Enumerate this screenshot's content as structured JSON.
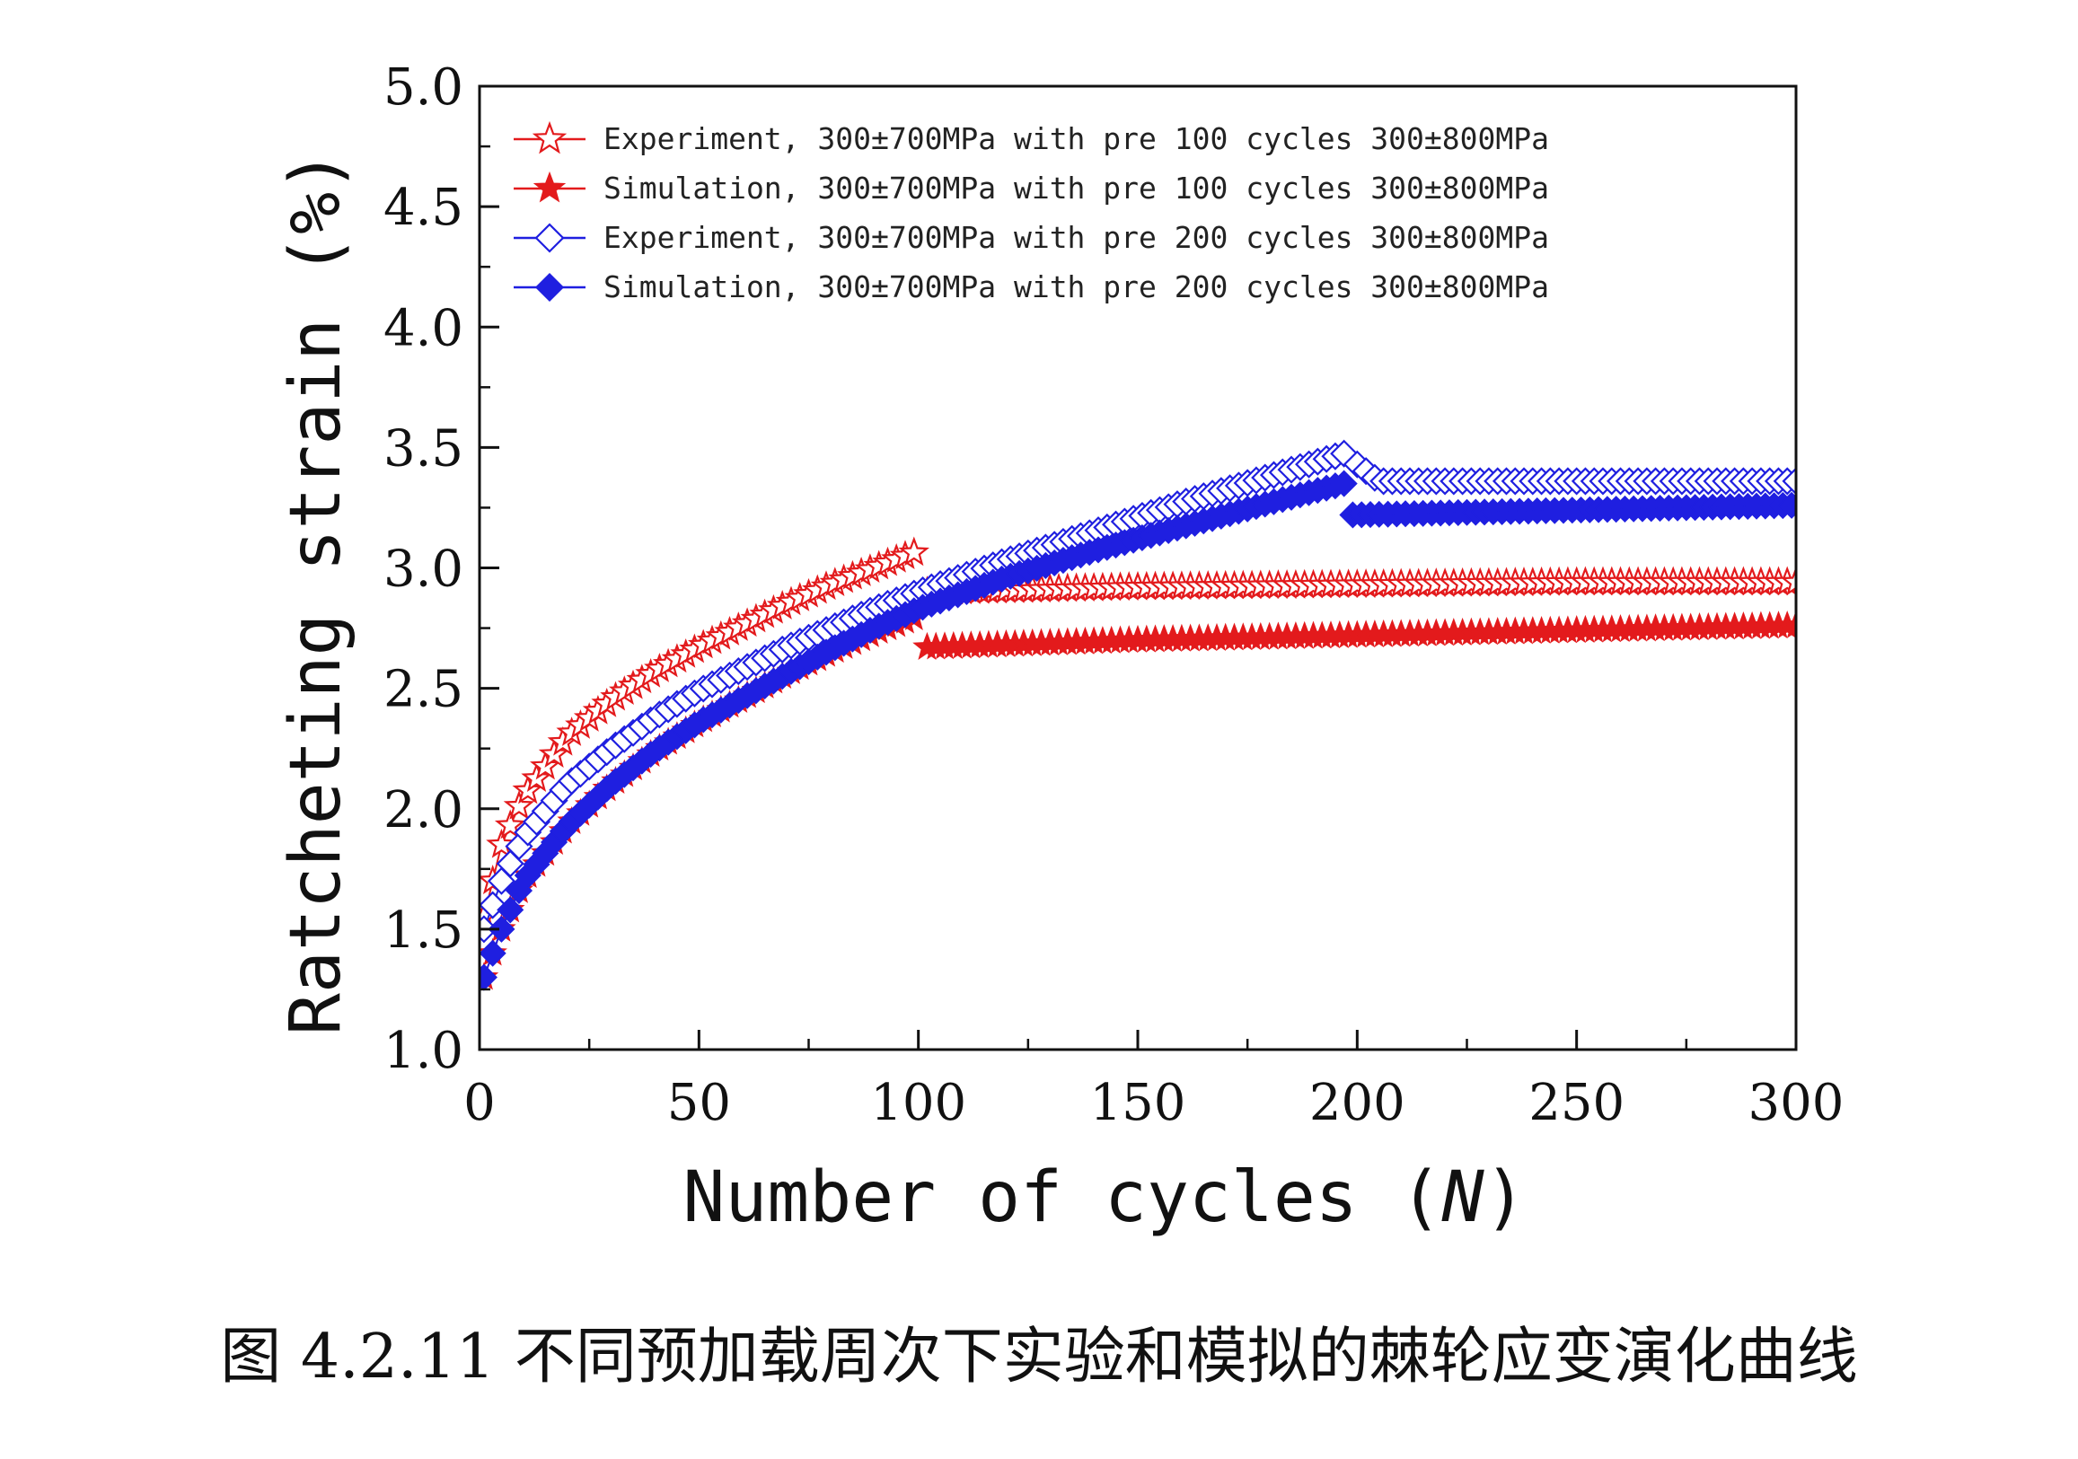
{
  "chart_data": {
    "type": "scatter",
    "title": "",
    "xlabel": "Number of cycles (",
    "xlabel_var": "N",
    "xlabel_close": ")",
    "ylabel": "Ratcheting strain (%)",
    "xlim": [
      0,
      300
    ],
    "ylim": [
      1.0,
      5.0
    ],
    "xticks": [
      "0",
      "50",
      "100",
      "150",
      "200",
      "250",
      "300"
    ],
    "yticks": [
      "1.0",
      "1.5",
      "2.0",
      "2.5",
      "3.0",
      "3.5",
      "4.0",
      "4.5",
      "5.0"
    ],
    "grid": false,
    "legend_position": "top-left",
    "series": [
      {
        "name": "Experiment,  300±700MPa with pre 100 cycles 300±800MPa",
        "color": "#e31a1c",
        "marker": "star-open",
        "segments": [
          {
            "x_start": 1,
            "x_end": 100,
            "points": [
              [
                1,
                1.55
              ],
              [
                5,
                1.85
              ],
              [
                10,
                2.05
              ],
              [
                20,
                2.3
              ],
              [
                30,
                2.45
              ],
              [
                40,
                2.57
              ],
              [
                50,
                2.67
              ],
              [
                60,
                2.76
              ],
              [
                70,
                2.85
              ],
              [
                80,
                2.93
              ],
              [
                90,
                3.0
              ],
              [
                100,
                3.07
              ]
            ]
          },
          {
            "x_start": 102,
            "x_end": 300,
            "points": [
              [
                102,
                2.9
              ],
              [
                150,
                2.92
              ],
              [
                200,
                2.93
              ],
              [
                250,
                2.94
              ],
              [
                300,
                2.94
              ]
            ]
          }
        ]
      },
      {
        "name": "Simulation,   300±700MPa with pre 100 cycles 300±800MPa",
        "color": "#e31a1c",
        "marker": "star-filled",
        "segments": [
          {
            "x_start": 1,
            "x_end": 100,
            "points": [
              [
                1,
                1.3
              ],
              [
                5,
                1.5
              ],
              [
                10,
                1.7
              ],
              [
                20,
                1.93
              ],
              [
                30,
                2.1
              ],
              [
                40,
                2.24
              ],
              [
                50,
                2.36
              ],
              [
                60,
                2.46
              ],
              [
                70,
                2.56
              ],
              [
                80,
                2.65
              ],
              [
                90,
                2.73
              ],
              [
                100,
                2.8
              ]
            ]
          },
          {
            "x_start": 102,
            "x_end": 300,
            "points": [
              [
                102,
                2.67
              ],
              [
                150,
                2.7
              ],
              [
                200,
                2.72
              ],
              [
                250,
                2.74
              ],
              [
                300,
                2.76
              ]
            ]
          }
        ]
      },
      {
        "name": "Experiment,  300±700MPa with pre 200 cycles 300±800MPa",
        "color": "#1f1fe0",
        "marker": "diamond-open",
        "segments": [
          {
            "x_start": 1,
            "x_end": 198,
            "points": [
              [
                1,
                1.5
              ],
              [
                5,
                1.7
              ],
              [
                10,
                1.88
              ],
              [
                20,
                2.1
              ],
              [
                30,
                2.25
              ],
              [
                40,
                2.38
              ],
              [
                50,
                2.49
              ],
              [
                60,
                2.58
              ],
              [
                70,
                2.67
              ],
              [
                80,
                2.75
              ],
              [
                90,
                2.83
              ],
              [
                100,
                2.9
              ],
              [
                120,
                3.03
              ],
              [
                140,
                3.15
              ],
              [
                160,
                3.27
              ],
              [
                180,
                3.38
              ],
              [
                198,
                3.48
              ]
            ]
          },
          {
            "x_start": 200,
            "x_end": 300,
            "points": [
              [
                200,
                3.43
              ],
              [
                205,
                3.36
              ],
              [
                250,
                3.36
              ],
              [
                300,
                3.36
              ]
            ]
          }
        ]
      },
      {
        "name": "Simulation,   300±700MPa with pre 200 cycles 300±800MPa",
        "color": "#1f1fe0",
        "marker": "diamond-filled",
        "segments": [
          {
            "x_start": 1,
            "x_end": 197,
            "points": [
              [
                1,
                1.3
              ],
              [
                5,
                1.5
              ],
              [
                10,
                1.7
              ],
              [
                20,
                1.93
              ],
              [
                30,
                2.1
              ],
              [
                40,
                2.24
              ],
              [
                50,
                2.36
              ],
              [
                60,
                2.46
              ],
              [
                70,
                2.56
              ],
              [
                80,
                2.66
              ],
              [
                90,
                2.75
              ],
              [
                100,
                2.83
              ],
              [
                120,
                2.96
              ],
              [
                140,
                3.07
              ],
              [
                160,
                3.17
              ],
              [
                180,
                3.27
              ],
              [
                197,
                3.35
              ]
            ]
          },
          {
            "x_start": 199,
            "x_end": 300,
            "points": [
              [
                199,
                3.22
              ],
              [
                250,
                3.24
              ],
              [
                300,
                3.26
              ]
            ]
          }
        ]
      }
    ]
  },
  "caption": "图 4.2.11 不同预加载周次下实验和模拟的棘轮应变演化曲线"
}
